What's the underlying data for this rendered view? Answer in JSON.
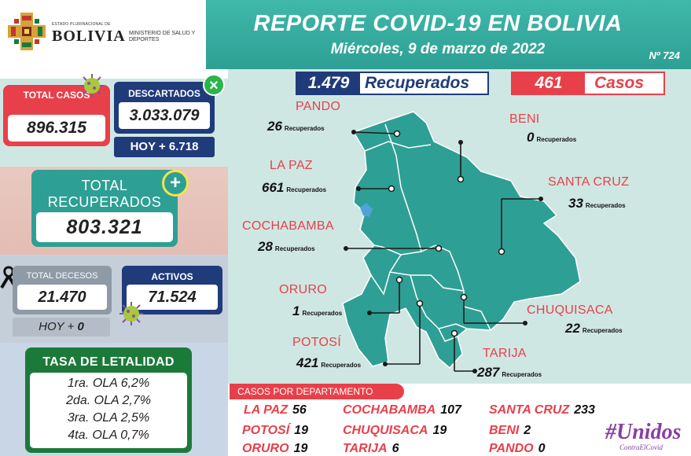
{
  "header": {
    "state_small": "ESTADO PLURINACIONAL DE",
    "state_big": "BOLIVIA",
    "ministry": "MINISTERIO DE SALUD Y DEPORTES",
    "title": "REPORTE COVID-19 EN BOLIVIA",
    "date": "Miércoles, 9 de marzo de 2022",
    "number": "Nº 724"
  },
  "totals": {
    "total_casos_label": "TOTAL CASOS",
    "total_casos": "896.315",
    "descartados_label": "DESCARTADOS",
    "descartados": "3.033.079",
    "hoy_descartados": "HOY + 6.718",
    "total_recuperados_label": "TOTAL RECUPERADOS",
    "total_recuperados": "803.321",
    "total_decesos_label": "TOTAL DECESOS",
    "total_decesos": "21.470",
    "hoy_decesos_prefix": "HOY +",
    "hoy_decesos": "0",
    "activos_label": "ACTIVOS",
    "activos": "71.524"
  },
  "letalidad": {
    "title": "TASA DE LETALIDAD",
    "rows": [
      "1ra. OLA 6,2%",
      "2da. OLA 2,7%",
      "3ra. OLA 2,5%",
      "4ta. OLA 0,7%"
    ]
  },
  "map": {
    "recuperados_num": "1.479",
    "recuperados_label": "Recuperados",
    "casos_num": "461",
    "casos_label": "Casos",
    "unit": "Recuperados",
    "departments": [
      {
        "name": "PANDO",
        "recuperados": "26"
      },
      {
        "name": "BENI",
        "recuperados": "0"
      },
      {
        "name": "LA PAZ",
        "recuperados": "661"
      },
      {
        "name": "SANTA CRUZ",
        "recuperados": "33"
      },
      {
        "name": "COCHABAMBA",
        "recuperados": "28"
      },
      {
        "name": "ORURO",
        "recuperados": "1"
      },
      {
        "name": "CHUQUISACA",
        "recuperados": "22"
      },
      {
        "name": "POTOSÍ",
        "recuperados": "421"
      },
      {
        "name": "TARIJA",
        "recuperados": "287"
      }
    ],
    "colors": {
      "map_fill": "#2e9f94",
      "accent_red": "#e8404a",
      "navy": "#1f3b7a"
    }
  },
  "casos_por_departamento": {
    "label": "CASOS POR DEPARTAMENTO",
    "items": [
      {
        "name": "LA PAZ",
        "value": "56"
      },
      {
        "name": "COCHABAMBA",
        "value": "107"
      },
      {
        "name": "SANTA CRUZ",
        "value": "233"
      },
      {
        "name": "POTOSÍ",
        "value": "19"
      },
      {
        "name": "CHUQUISACA",
        "value": "19"
      },
      {
        "name": "BENI",
        "value": "2"
      },
      {
        "name": "ORURO",
        "value": "19"
      },
      {
        "name": "TARIJA",
        "value": "6"
      },
      {
        "name": "PANDO",
        "value": "0"
      }
    ]
  },
  "campaign": {
    "hashtag": "#Unidos",
    "sub": "ContraElCovid"
  }
}
